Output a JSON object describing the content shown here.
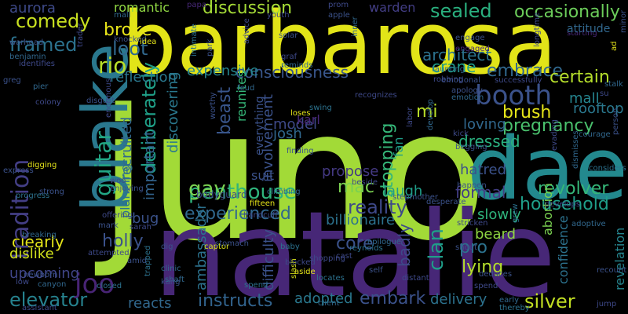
{
  "words": [
    {
      "text": "juno",
      "color": "#a2da37"
    },
    {
      "text": "natalie",
      "color": "#472777"
    },
    {
      "text": "barbarosa",
      "color": "#e2e418"
    },
    {
      "text": "dae",
      "color": "#23898e"
    },
    {
      "text": "blake",
      "color": "#2a788e"
    },
    {
      "text": "penthouse",
      "color": "#2fb47c"
    },
    {
      "text": "booth",
      "color": "#3b528b"
    },
    {
      "text": "comedy",
      "color": "#c8e020"
    },
    {
      "text": "discussion",
      "color": "#a5db36"
    },
    {
      "text": "sealed",
      "color": "#2ab07f"
    },
    {
      "text": "occasionally",
      "color": "#6ccd5a"
    },
    {
      "text": "elevator",
      "color": "#26828e"
    },
    {
      "text": "instructs",
      "color": "#32648e"
    },
    {
      "text": "embark",
      "color": "#3b528b"
    },
    {
      "text": "silver",
      "color": "#c2df23"
    },
    {
      "text": "delivery",
      "color": "#2c728e"
    },
    {
      "text": "adopted",
      "color": "#2a788e"
    },
    {
      "text": "joo",
      "color": "#482475"
    },
    {
      "text": "reality",
      "color": "#3e4989"
    },
    {
      "text": "household",
      "color": "#1f9e89"
    },
    {
      "text": "revolver",
      "color": "#35b779"
    },
    {
      "text": "gay",
      "color": "#7ad151"
    },
    {
      "text": "experienced",
      "color": "#31688e"
    },
    {
      "text": "holly",
      "color": "#3b528b"
    },
    {
      "text": "clearly",
      "color": "#e5e419"
    },
    {
      "text": "upcoming",
      "color": "#404688"
    },
    {
      "text": "framed",
      "color": "#2c728e"
    },
    {
      "text": "tradition",
      "color": "#433e85"
    },
    {
      "text": "guitar",
      "color": "#22a785"
    },
    {
      "text": "deliberately",
      "color": "#1fa088"
    },
    {
      "text": "pro",
      "color": "#2c728e"
    },
    {
      "text": "lying",
      "color": "#b5de2b"
    },
    {
      "text": "clan",
      "color": "#1f9e89"
    },
    {
      "text": "core",
      "color": "#3b528b"
    },
    {
      "text": "beard",
      "color": "#90d743"
    },
    {
      "text": "slowly",
      "color": "#2fb47c"
    },
    {
      "text": "formal",
      "color": "#433e85"
    },
    {
      "text": "crane",
      "color": "#1f9e89"
    },
    {
      "text": "embrace",
      "color": "#31688e"
    },
    {
      "text": "certain",
      "color": "#b5de2b"
    },
    {
      "text": "consciousness",
      "color": "#39568c"
    },
    {
      "text": "expensive",
      "color": "#25848e"
    },
    {
      "text": "reflection",
      "color": "#2a788e"
    },
    {
      "text": "rio",
      "color": "#b8de29"
    },
    {
      "text": "loot",
      "color": "#31688e"
    },
    {
      "text": "broke",
      "color": "#e7e419"
    },
    {
      "text": "romantic",
      "color": "#90d743"
    },
    {
      "text": "aurora",
      "color": "#3e4a89"
    },
    {
      "text": "warden",
      "color": "#433e85"
    },
    {
      "text": "architect",
      "color": "#2c728e"
    },
    {
      "text": "brush",
      "color": "#e5e419"
    },
    {
      "text": "pregnancy",
      "color": "#4ac16d"
    },
    {
      "text": "mall",
      "color": "#25848e"
    },
    {
      "text": "rooftop",
      "color": "#2a788e"
    },
    {
      "text": "dressed",
      "color": "#2ab07f"
    },
    {
      "text": "loving",
      "color": "#31688e"
    },
    {
      "text": "hatred",
      "color": "#3b528b"
    },
    {
      "text": "stopping",
      "color": "#35b779"
    },
    {
      "text": "josh",
      "color": "#31688e"
    },
    {
      "text": "model",
      "color": "#3e4989"
    },
    {
      "text": "suit",
      "color": "#3b528b"
    },
    {
      "text": "propose",
      "color": "#443983"
    },
    {
      "text": "laugh",
      "color": "#1f9e89"
    },
    {
      "text": "mac",
      "color": "#7ad151"
    },
    {
      "text": "billionaire",
      "color": "#2c728e"
    },
    {
      "text": "bug",
      "color": "#3b528b"
    },
    {
      "text": "reacts",
      "color": "#31688e"
    },
    {
      "text": "karl",
      "color": "#482878"
    },
    {
      "text": "mi",
      "color": "#b8de29"
    },
    {
      "text": "beast",
      "color": "#39568c"
    },
    {
      "text": "recruited",
      "color": "#31688e"
    },
    {
      "text": "planning",
      "color": "#2c728e"
    },
    {
      "text": "important",
      "color": "#32648e"
    },
    {
      "text": "discovering",
      "color": "#2a788e"
    },
    {
      "text": "involvement",
      "color": "#3b528b"
    },
    {
      "text": "fan",
      "color": "#1f9e89"
    },
    {
      "text": "badly",
      "color": "#3e4989"
    },
    {
      "text": "ambassador",
      "color": "#2c728e"
    },
    {
      "text": "difficulty",
      "color": "#3b528b"
    },
    {
      "text": "abortion",
      "color": "#7ad151"
    },
    {
      "text": "confidence",
      "color": "#2c728e"
    },
    {
      "text": "revelation",
      "color": "#25848e"
    },
    {
      "text": "dislike",
      "color": "#d0e11c"
    },
    {
      "text": "reunites",
      "color": "#35b779"
    },
    {
      "text": "everything",
      "color": "#3b528b"
    },
    {
      "text": "bodyguard",
      "color": "#3e4989"
    },
    {
      "text": "enjoying",
      "color": "#3b528b"
    },
    {
      "text": "captor",
      "color": "#d8e219"
    },
    {
      "text": "fifteen",
      "color": "#e5e419"
    },
    {
      "text": "dig",
      "color": "#3b528b"
    },
    {
      "text": "digging",
      "color": "#e5e419"
    },
    {
      "text": "woo",
      "color": "#3e4989"
    },
    {
      "text": "stepmother",
      "color": "#3b528b"
    },
    {
      "text": "beside",
      "color": "#3e4989"
    },
    {
      "text": "climbing",
      "color": "#31688e"
    },
    {
      "text": "handcuff",
      "color": "#3e4989"
    },
    {
      "text": "baby",
      "color": "#2c728e"
    },
    {
      "text": "clinic",
      "color": "#31688e"
    },
    {
      "text": "closed",
      "color": "#2c728e"
    },
    {
      "text": "kang",
      "color": "#3b528b"
    },
    {
      "text": "sarah",
      "color": "#3e4989"
    },
    {
      "text": "mark",
      "color": "#3b528b"
    },
    {
      "text": "offering",
      "color": "#3e4989"
    },
    {
      "text": "strong",
      "color": "#3b528b"
    },
    {
      "text": "progress",
      "color": "#2c728e"
    },
    {
      "text": "low",
      "color": "#3e4989"
    },
    {
      "text": "newborn",
      "color": "#3b528b"
    },
    {
      "text": "canyon",
      "color": "#31688e"
    },
    {
      "text": "attempted",
      "color": "#3e4989"
    },
    {
      "text": "amid",
      "color": "#3b528b"
    },
    {
      "text": "trapped",
      "color": "#2c728e"
    },
    {
      "text": "shaft",
      "color": "#31688e"
    },
    {
      "text": "aside",
      "color": "#e5e419"
    },
    {
      "text": "locates",
      "color": "#2c728e"
    },
    {
      "text": "shopping",
      "color": "#3e4989"
    },
    {
      "text": "client",
      "color": "#31688e"
    },
    {
      "text": "self",
      "color": "#3b528b"
    },
    {
      "text": "distant",
      "color": "#3e4989"
    },
    {
      "text": "deduces",
      "color": "#3b528b"
    },
    {
      "text": "spend",
      "color": "#3e4989"
    },
    {
      "text": "early",
      "color": "#31688e"
    },
    {
      "text": "thereby",
      "color": "#2c728e"
    },
    {
      "text": "recount",
      "color": "#3b528b"
    },
    {
      "text": "jump",
      "color": "#3e4989"
    },
    {
      "text": "adoptive",
      "color": "#31688e"
    },
    {
      "text": "grew",
      "color": "#2c728e"
    },
    {
      "text": "stricken",
      "color": "#3e4989"
    },
    {
      "text": "desperate",
      "color": "#3b528b"
    },
    {
      "text": "epilogue",
      "color": "#31688e"
    },
    {
      "text": "cast",
      "color": "#3e4989"
    },
    {
      "text": "reynolds",
      "color": "#2c728e"
    },
    {
      "text": "shout",
      "color": "#3b528b"
    },
    {
      "text": "slash",
      "color": "#d8e219"
    },
    {
      "text": "blocked",
      "color": "#3e4989"
    },
    {
      "text": "happen",
      "color": "#3b528b"
    },
    {
      "text": "dismisses",
      "color": "#31688e"
    },
    {
      "text": "develops",
      "color": "#3e4989"
    },
    {
      "text": "considers",
      "color": "#2c728e"
    },
    {
      "text": "begging",
      "color": "#3b528b"
    },
    {
      "text": "kick",
      "color": "#3e4989"
    },
    {
      "text": "courage",
      "color": "#31688e"
    },
    {
      "text": "finding",
      "color": "#3b528b"
    },
    {
      "text": "labor",
      "color": "#3e4989"
    },
    {
      "text": "develop",
      "color": "#31688e"
    },
    {
      "text": "swing",
      "color": "#2c728e"
    },
    {
      "text": "worthy",
      "color": "#3b528b"
    },
    {
      "text": "loses",
      "color": "#e5e419"
    },
    {
      "text": "recognizes",
      "color": "#3e4989"
    },
    {
      "text": "feud",
      "color": "#31688e"
    },
    {
      "text": "intimate",
      "color": "#2c728e"
    },
    {
      "text": "park",
      "color": "#3b528b"
    },
    {
      "text": "graf",
      "color": "#3e4989"
    },
    {
      "text": "reminds",
      "color": "#31688e"
    },
    {
      "text": "solar",
      "color": "#3b528b"
    },
    {
      "text": "advice",
      "color": "#3e4989"
    },
    {
      "text": "engaged",
      "color": "#482878"
    },
    {
      "text": "taunting",
      "color": "#31688e"
    },
    {
      "text": "engage",
      "color": "#3b528b"
    },
    {
      "text": "robbing",
      "color": "#3e4989"
    },
    {
      "text": "inner",
      "color": "#31688e"
    },
    {
      "text": "emotional",
      "color": "#3b528b"
    },
    {
      "text": "successfully",
      "color": "#3e4989"
    },
    {
      "text": "emotion",
      "color": "#31688e"
    },
    {
      "text": "apology",
      "color": "#3b528b"
    },
    {
      "text": "longtime",
      "color": "#3e4989"
    },
    {
      "text": "starting",
      "color": "#482878"
    },
    {
      "text": "attitude",
      "color": "#31688e"
    },
    {
      "text": "ad",
      "color": "#e5e419"
    },
    {
      "text": "minor",
      "color": "#3b528b"
    },
    {
      "text": "stalk",
      "color": "#31688e"
    },
    {
      "text": "su",
      "color": "#3e4989"
    },
    {
      "text": "person",
      "color": "#3b528b"
    },
    {
      "text": "evading",
      "color": "#3e4989"
    },
    {
      "text": "papa",
      "color": "#482878"
    },
    {
      "text": "prom",
      "color": "#3e4989"
    },
    {
      "text": "apple",
      "color": "#3b528b"
    },
    {
      "text": "youth",
      "color": "#3e4989"
    },
    {
      "text": "mall",
      "color": "#31688e"
    },
    {
      "text": "knocked",
      "color": "#3b528b"
    },
    {
      "text": "idea",
      "color": "#e5e419"
    },
    {
      "text": "trader",
      "color": "#3e4989"
    },
    {
      "text": "benjamin",
      "color": "#31688e"
    },
    {
      "text": "warhead",
      "color": "#3b528b"
    },
    {
      "text": "identifies",
      "color": "#3e4989"
    },
    {
      "text": "pier",
      "color": "#31688e"
    },
    {
      "text": "greg",
      "color": "#3b528b"
    },
    {
      "text": "colony",
      "color": "#3e4989"
    },
    {
      "text": "disgust",
      "color": "#3b528b"
    },
    {
      "text": "enormous",
      "color": "#3e4989"
    },
    {
      "text": "express",
      "color": "#3b528b"
    },
    {
      "text": "breaking",
      "color": "#31688e"
    },
    {
      "text": "assistant",
      "color": "#3e4989"
    },
    {
      "text": "stomach",
      "color": "#3b528b"
    },
    {
      "text": "spend",
      "color": "#2c728e"
    }
  ]
}
